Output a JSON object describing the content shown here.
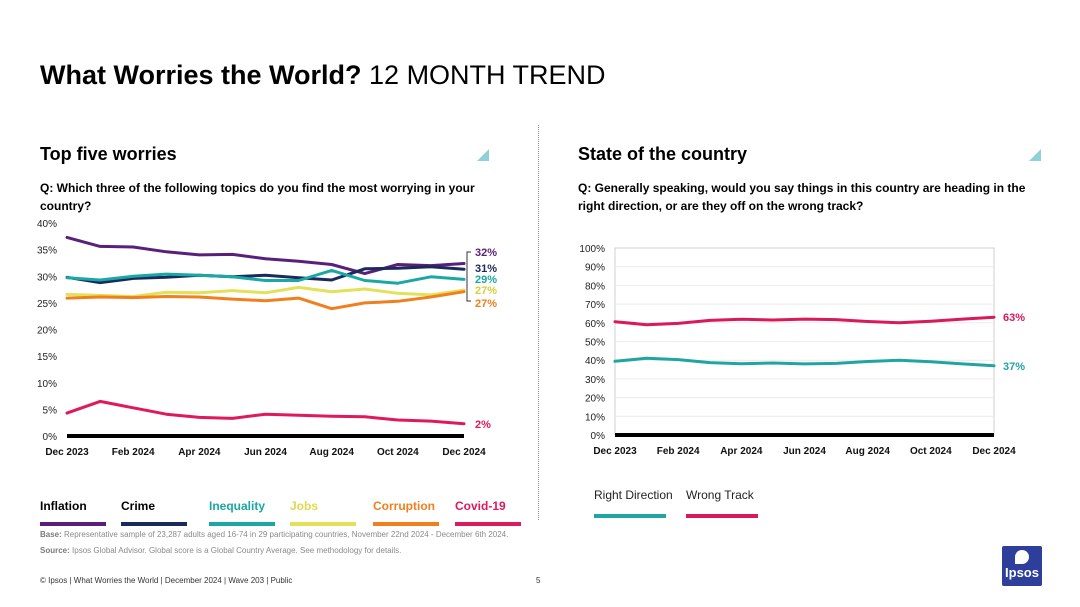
{
  "header": {
    "title_bold": "What Worries the World?",
    "title_rest": "12 MONTH TREND"
  },
  "left": {
    "title": "Top five worries",
    "question": "Q: Which three of the following topics do you find the most worrying in your country?"
  },
  "right": {
    "title": "State of the country",
    "question": "Q: Generally speaking, would you say things in this country are heading in the right direction, or are they off on the wrong track?"
  },
  "colors": {
    "inflation": "#5a1f7a",
    "crime": "#1b2a5c",
    "inequality": "#1aa8a5",
    "jobs": "#e3e05a",
    "corruption": "#f07f1e",
    "covid": "#e0195a",
    "right_direction": "#20a5a3",
    "wrong_track": "#d91a5a"
  },
  "chart_data": [
    {
      "type": "line",
      "title": "Top five worries",
      "x": [
        "Dec 2023",
        "Jan 2024",
        "Feb 2024",
        "Mar 2024",
        "Apr 2024",
        "May 2024",
        "Jun 2024",
        "Jul 2024",
        "Aug 2024",
        "Sep 2024",
        "Oct 2024",
        "Nov 2024",
        "Dec 2024"
      ],
      "x_tick_labels": [
        "Dec 2023",
        "Feb 2024",
        "Apr 2024",
        "Jun 2024",
        "Aug 2024",
        "Oct 2024",
        "Dec 2024"
      ],
      "y_ticks": [
        "0%",
        "5%",
        "10%",
        "15%",
        "20%",
        "25%",
        "30%",
        "35%",
        "40%"
      ],
      "ylim": [
        0,
        40
      ],
      "series": [
        {
          "name": "Inflation",
          "key": "inflation",
          "values": [
            37.3,
            35.6,
            35.5,
            34.6,
            34.0,
            34.1,
            33.3,
            32.8,
            32.2,
            30.5,
            32.2,
            32.0,
            32.4
          ],
          "end_label": "32%"
        },
        {
          "name": "Crime",
          "key": "crime",
          "values": [
            29.8,
            28.8,
            29.6,
            29.8,
            30.2,
            29.9,
            30.2,
            29.7,
            29.3,
            31.4,
            31.5,
            31.8,
            31.3
          ],
          "end_label": "31%"
        },
        {
          "name": "Inequality",
          "key": "inequality",
          "values": [
            29.7,
            29.3,
            30.0,
            30.4,
            30.2,
            29.9,
            29.2,
            29.2,
            31.1,
            29.2,
            28.7,
            29.9,
            29.4
          ],
          "end_label": "29%"
        },
        {
          "name": "Jobs",
          "key": "jobs",
          "values": [
            26.6,
            26.4,
            26.2,
            27.0,
            26.9,
            27.3,
            26.9,
            27.9,
            27.1,
            27.6,
            26.8,
            26.5,
            27.4
          ],
          "end_label": "27%"
        },
        {
          "name": "Corruption",
          "key": "corruption",
          "values": [
            25.9,
            26.1,
            26.0,
            26.2,
            26.1,
            25.7,
            25.4,
            25.9,
            23.9,
            25.0,
            25.3,
            26.1,
            27.1
          ],
          "end_label": "27%"
        },
        {
          "name": "Covid-19",
          "key": "covid",
          "values": [
            4.3,
            6.5,
            5.3,
            4.1,
            3.5,
            3.3,
            4.1,
            3.9,
            3.7,
            3.6,
            3.0,
            2.8,
            2.3
          ],
          "end_label": "2%"
        }
      ]
    },
    {
      "type": "line",
      "title": "State of the country",
      "x": [
        "Dec 2023",
        "Jan 2024",
        "Feb 2024",
        "Mar 2024",
        "Apr 2024",
        "May 2024",
        "Jun 2024",
        "Jul 2024",
        "Aug 2024",
        "Sep 2024",
        "Oct 2024",
        "Nov 2024",
        "Dec 2024"
      ],
      "x_tick_labels": [
        "Dec 2023",
        "Feb 2024",
        "Apr 2024",
        "Jun 2024",
        "Aug 2024",
        "Oct 2024",
        "Dec 2024"
      ],
      "y_ticks": [
        "0%",
        "10%",
        "20%",
        "30%",
        "40%",
        "50%",
        "60%",
        "70%",
        "80%",
        "90%",
        "100%"
      ],
      "ylim": [
        0,
        100
      ],
      "series": [
        {
          "name": "Right Direction",
          "key": "right_direction",
          "values": [
            39.4,
            41.0,
            40.3,
            38.7,
            38.1,
            38.5,
            38.0,
            38.3,
            39.3,
            40.0,
            39.2,
            38.0,
            37.0
          ],
          "end_label": "37%"
        },
        {
          "name": "Wrong Track",
          "key": "wrong_track",
          "values": [
            60.6,
            59.0,
            59.7,
            61.3,
            61.9,
            61.5,
            62.0,
            61.7,
            60.7,
            60.0,
            60.8,
            62.0,
            63.0
          ],
          "end_label": "63%"
        }
      ]
    }
  ],
  "notes": {
    "base_label": "Base:",
    "base_text": "Representative sample of 23,287 adults aged 16-74 in 29 participating countries, November 22nd 2024 - December 6th 2024.",
    "source_label": "Source:",
    "source_text": "Ipsos Global Advisor. Global score is a Global Country Average. See methodology for details."
  },
  "footer": {
    "text": "© Ipsos | What Worries the World | December 2024 | Wave 203 | Public",
    "page": "5"
  },
  "logo": {
    "text": "Ipsos"
  }
}
